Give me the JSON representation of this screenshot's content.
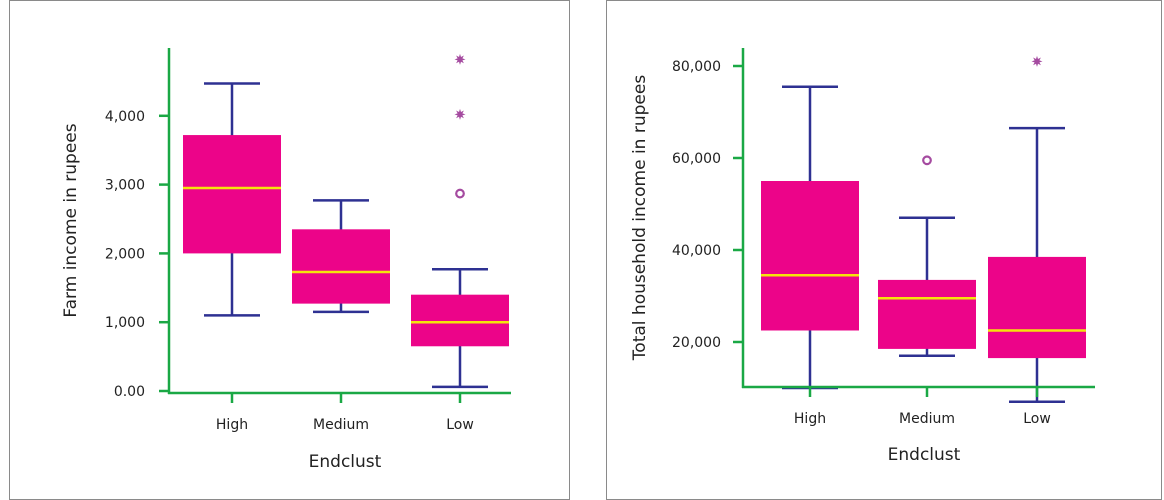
{
  "colors": {
    "box_fill": "#EC0489",
    "median": "#F5E40A",
    "whisker": "#2E3192",
    "axis": "#1AA845",
    "outlier": "#A54BA0"
  },
  "chart_data": [
    {
      "type": "box",
      "xlabel": "Endclust",
      "ylabel": "Farm income in rupees",
      "categories": [
        "High",
        "Medium",
        "Low"
      ],
      "ylim": [
        0,
        5000
      ],
      "yticks": [
        0,
        1000,
        2000,
        3000,
        4000
      ],
      "ytick_labels": [
        "0.00",
        "1,000",
        "2,000",
        "3,000",
        "4,000"
      ],
      "boxes": [
        {
          "category": "High",
          "whislo": 1100,
          "q1": 2000,
          "median": 2950,
          "q3": 3720,
          "whishi": 4470
        },
        {
          "category": "Medium",
          "whislo": 1150,
          "q1": 1270,
          "median": 1730,
          "q3": 2350,
          "whishi": 2770
        },
        {
          "category": "Low",
          "whislo": 60,
          "q1": 650,
          "median": 1000,
          "q3": 1400,
          "whishi": 1770
        }
      ],
      "outliers": [
        {
          "category": "Low",
          "value": 2870,
          "marker": "circle"
        },
        {
          "category": "Low",
          "value": 4020,
          "marker": "star"
        },
        {
          "category": "Low",
          "value": 4820,
          "marker": "star"
        }
      ],
      "grid": false,
      "legend": "none"
    },
    {
      "type": "box",
      "xlabel": "Endclust",
      "ylabel": "Total household income in rupees",
      "categories": [
        "High",
        "Medium",
        "Low"
      ],
      "ylim": [
        5000,
        85000
      ],
      "yticks": [
        20000,
        40000,
        60000,
        80000
      ],
      "ytick_labels": [
        "20,000",
        "40,000",
        "60,000",
        "80,000"
      ],
      "boxes": [
        {
          "category": "High",
          "whislo": 10000,
          "q1": 22500,
          "median": 34500,
          "q3": 55000,
          "whishi": 75500
        },
        {
          "category": "Medium",
          "whislo": 17000,
          "q1": 18500,
          "median": 29500,
          "q3": 33500,
          "whishi": 47000
        },
        {
          "category": "Low",
          "whislo": 7000,
          "q1": 16500,
          "median": 22500,
          "q3": 38500,
          "whishi": 66500
        }
      ],
      "outliers": [
        {
          "category": "Medium",
          "value": 59500,
          "marker": "circle"
        },
        {
          "category": "Low",
          "value": 81000,
          "marker": "star"
        }
      ],
      "grid": false,
      "legend": "none"
    }
  ]
}
